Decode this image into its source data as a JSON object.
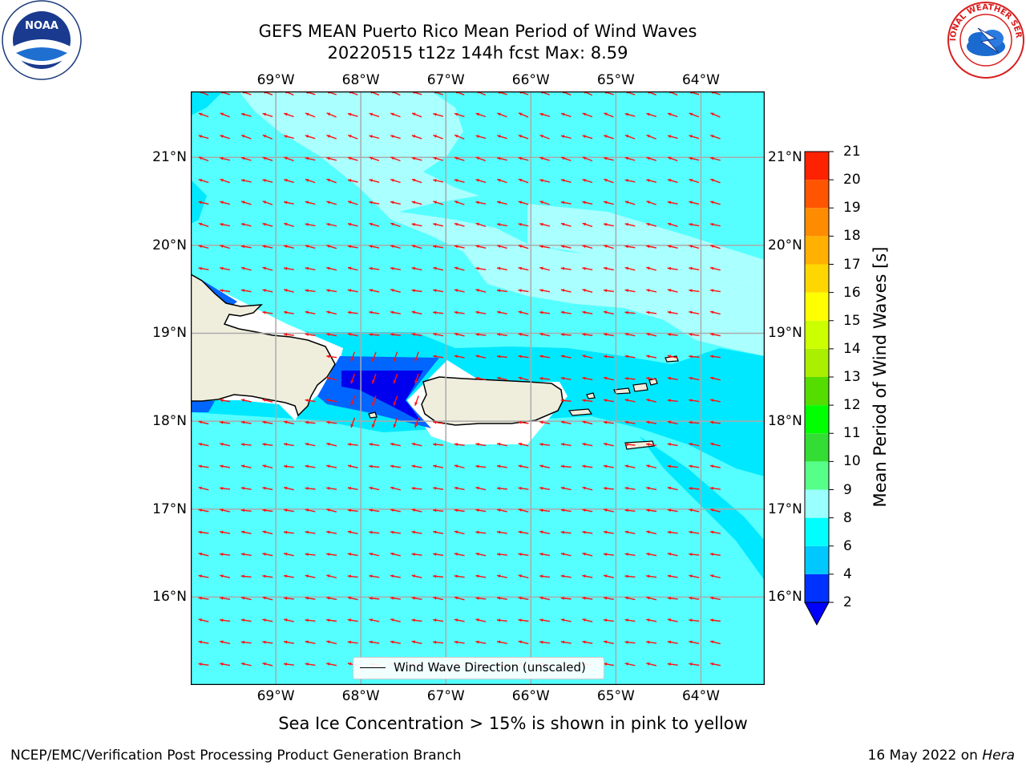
{
  "title": {
    "line1": "GEFS MEAN Puerto Rico Mean Period of Wind Waves",
    "line2": "20220515 t12z 144h fcst   Max: 8.59"
  },
  "logos": {
    "left_icon": "noaa-logo",
    "right_icon": "national-weather-service-logo",
    "nws_text": "NATIONAL WEATHER SERVICE"
  },
  "axes": {
    "lon_labels": [
      "69°W",
      "68°W",
      "67°W",
      "66°W",
      "65°W",
      "64°W"
    ],
    "lat_labels": [
      "21°N",
      "20°N",
      "19°N",
      "18°N",
      "17°N",
      "16°N"
    ],
    "lon_values": [
      -69,
      -68,
      -67,
      -66,
      -65,
      -64
    ],
    "lat_values": [
      21,
      20,
      19,
      18,
      17,
      16
    ],
    "lon_range": [
      -70,
      -63.25
    ],
    "lat_range": [
      15,
      21.75
    ]
  },
  "colorbar": {
    "title": "Mean Period of Wind Waves [s]",
    "ticks": [
      "2",
      "4",
      "6",
      "8",
      "9",
      "10",
      "11",
      "12",
      "13",
      "14",
      "15",
      "16",
      "17",
      "18",
      "19",
      "20",
      "21"
    ],
    "colors": [
      "#0032ff",
      "#00c8ff",
      "#00ffff",
      "#99ffff",
      "#55ff88",
      "#33dd33",
      "#00ff00",
      "#55dd00",
      "#aaee00",
      "#ccff00",
      "#ffff00",
      "#ffd700",
      "#ffb000",
      "#ff8c00",
      "#ff5500",
      "#ff2200",
      "#ff0000"
    ],
    "under_color": "#0000ff"
  },
  "legend": {
    "label": "Wind Wave Direction (unscaled)"
  },
  "note": "Sea Ice Concentration > 15% is shown in pink to yellow",
  "footer": {
    "left": "NCEP/EMC/Verification Post Processing Product Generation Branch",
    "right_prefix": "16 May 2022 on ",
    "right_machine": "Hera"
  },
  "map_colors": {
    "ocean_6_8": "#55ffff",
    "ocean_8_9": "#aaffff",
    "ocean_4_6": "#00e8ff",
    "ocean_2_4": "#0066ff",
    "ocean_lt2": "#0000ee",
    "land": "#efeedd",
    "arrows": "#ff1010"
  }
}
